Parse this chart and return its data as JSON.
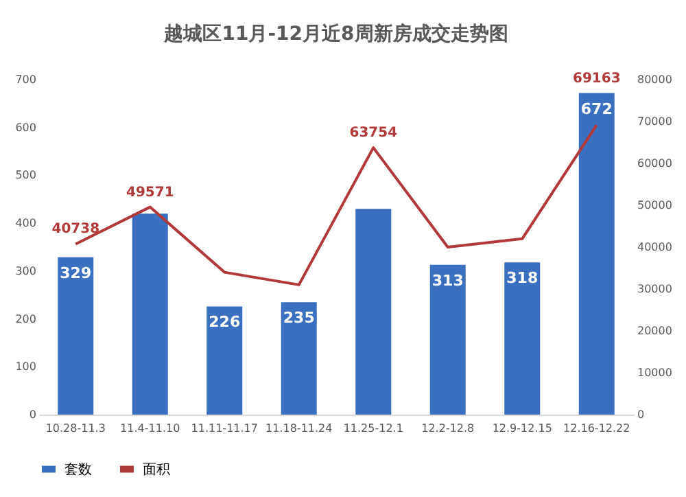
{
  "chart_data": {
    "type": "bar",
    "title": "越城区11月-12月近8周新房成交走势图",
    "categories": [
      "10.28-11.3",
      "11.4-11.10",
      "11.11-11.17",
      "11.18-11.24",
      "11.25-12.1",
      "12.2-12.8",
      "12.9-12.15",
      "12.16-12.22"
    ],
    "series": [
      {
        "name": "套数",
        "color": "#3a70bf",
        "values": [
          329,
          420,
          226,
          235,
          430,
          313,
          318,
          672
        ],
        "value_labels": [
          "329",
          null,
          "226",
          "235",
          null,
          "313",
          "318",
          "672"
        ]
      },
      {
        "name": "面积",
        "type": "line",
        "axis": "y2",
        "color": "#b03a3a",
        "values": [
          40738,
          49571,
          34000,
          31000,
          63754,
          40000,
          42000,
          69163
        ],
        "value_labels": [
          "40738",
          "49571",
          null,
          null,
          "63754",
          null,
          null,
          "69163"
        ]
      }
    ],
    "ylim": [
      0,
      700
    ],
    "yticks": [
      0,
      100,
      200,
      300,
      400,
      500,
      600,
      700
    ],
    "y2lim": [
      0,
      80000
    ],
    "y2ticks": [
      0,
      10000,
      20000,
      30000,
      40000,
      50000,
      60000,
      70000,
      80000
    ],
    "legend": "bottom",
    "grid": false
  }
}
